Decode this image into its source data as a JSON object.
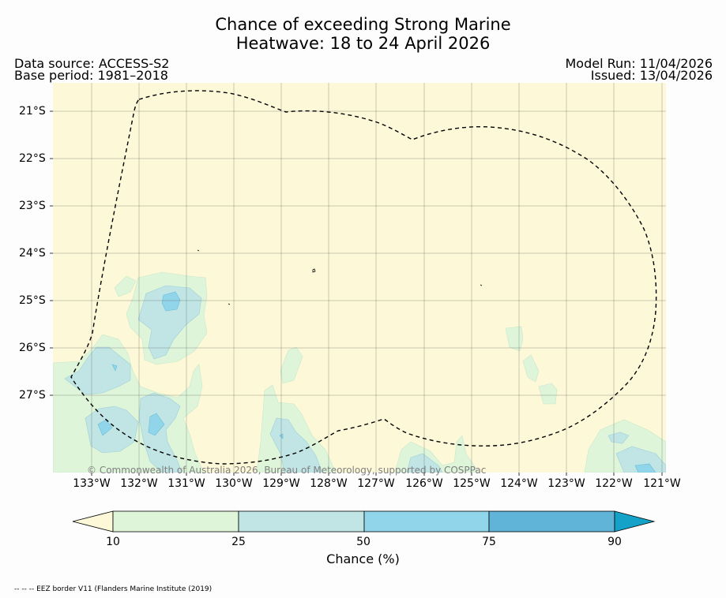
{
  "title": {
    "line1": "Chance of exceeding Strong Marine",
    "line2": "Heatwave: 18 to 24 April 2026"
  },
  "header": {
    "data_source": "Data source: ACCESS-S2",
    "base_period": "Base period: 1981–2018",
    "model_run": "Model Run: 11/04/2026",
    "issued": "Issued: 13/04/2026"
  },
  "map": {
    "longitude_labels": [
      "133°W",
      "132°W",
      "131°W",
      "130°W",
      "129°W",
      "128°W",
      "127°W",
      "126°W",
      "125°W",
      "124°W",
      "123°W",
      "122°W",
      "121°W"
    ],
    "latitude_labels": [
      "21°S",
      "22°S",
      "23°S",
      "24°S",
      "25°S",
      "26°S",
      "27°S"
    ],
    "copyright": "© Commonwealth of Australia 2026, Bureau of Meteorology, supported by COSPPac",
    "background_color": "#fdf8d7",
    "gridlines": true
  },
  "colorbar": {
    "ticks": [
      "10",
      "25",
      "50",
      "75",
      "90"
    ],
    "label": "Chance (%)",
    "colors": [
      "#fdf8d7",
      "#def5da",
      "#c1e5e5",
      "#91d5ea",
      "#60b4d7",
      "#15a2c8"
    ]
  },
  "footnote": "-- -- -- EEZ border V11 (Flanders Marine Institute (2019)"
}
